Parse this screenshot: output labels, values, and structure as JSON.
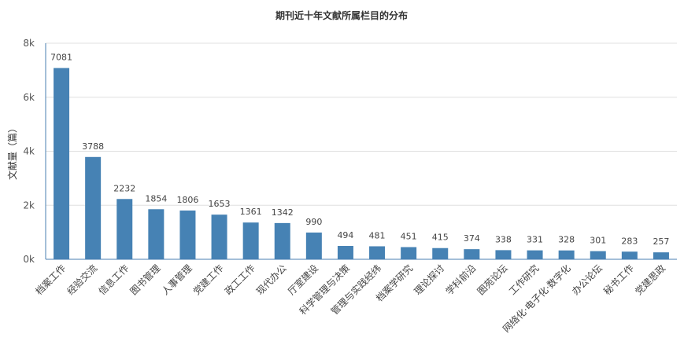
{
  "chart_data": {
    "type": "bar",
    "title": "期刊近十年文献所属栏目的分布",
    "xlabel": "",
    "ylabel": "文献量（篇）",
    "ylim": [
      0,
      8000
    ],
    "yticks": [
      0,
      2000,
      4000,
      6000,
      8000
    ],
    "ytick_labels": [
      "0k",
      "2k",
      "4k",
      "6k",
      "8k"
    ],
    "grid": true,
    "legend": "none",
    "bar_color": "#4682b4",
    "categories": [
      "档案工作",
      "经验交流",
      "信息工作",
      "图书管理",
      "人事管理",
      "党建工作",
      "政工工作",
      "现代办公",
      "厅室建设",
      "科学管理与决策",
      "管理与实践经纬",
      "档案学研究",
      "理论探讨",
      "学科前沿",
      "图苑论坛",
      "工作研究",
      "网络化·电子化·数字化",
      "办公论坛",
      "秘书工作",
      "党建思政"
    ],
    "values": [
      7081,
      3788,
      2232,
      1854,
      1806,
      1653,
      1361,
      1342,
      990,
      494,
      481,
      451,
      415,
      374,
      338,
      331,
      328,
      301,
      283,
      257
    ]
  }
}
